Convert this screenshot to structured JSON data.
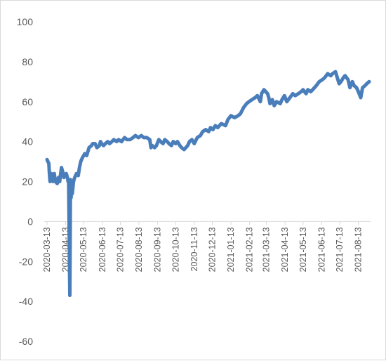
{
  "chart_data": {
    "type": "line",
    "title": "",
    "xlabel": "",
    "ylabel": "",
    "ylim": [
      -60,
      100
    ],
    "y_ticks": [
      100,
      80,
      60,
      40,
      20,
      0,
      -20,
      -40,
      -60
    ],
    "x_ticks": [
      "2020-03-13",
      "2020-04-13",
      "2020-05-13",
      "2020-06-13",
      "2020-07-13",
      "2020-08-13",
      "2020-09-13",
      "2020-10-13",
      "2020-11-13",
      "2020-12-13",
      "2021-01-13",
      "2021-02-13",
      "2021-03-13",
      "2021-04-13",
      "2021-05-13",
      "2021-06-13",
      "2021-07-13",
      "2021-08-13"
    ],
    "x_range": [
      "2020-03-13",
      "2021-08-31"
    ],
    "grid": false,
    "legend": "none",
    "line_color": "#4a7ebb",
    "series": [
      {
        "x": [
          "2020-03-13",
          "2020-03-16",
          "2020-03-17",
          "2020-03-18",
          "2020-03-20",
          "2020-03-23",
          "2020-03-25",
          "2020-03-27",
          "2020-03-30",
          "2020-04-01",
          "2020-04-03",
          "2020-04-06",
          "2020-04-08",
          "2020-04-10",
          "2020-04-14",
          "2020-04-16",
          "2020-04-17",
          "2020-04-18",
          "2020-04-19",
          "2020-04-20",
          "2020-04-21",
          "2020-04-22",
          "2020-04-23",
          "2020-04-24",
          "2020-04-26",
          "2020-04-28",
          "2020-05-01",
          "2020-05-04",
          "2020-05-06",
          "2020-05-08",
          "2020-05-11",
          "2020-05-13",
          "2020-05-15",
          "2020-05-18",
          "2020-05-20",
          "2020-05-22",
          "2020-05-26",
          "2020-05-28",
          "2020-06-01",
          "2020-06-04",
          "2020-06-08",
          "2020-06-10",
          "2020-06-12",
          "2020-06-15",
          "2020-06-18",
          "2020-06-22",
          "2020-06-25",
          "2020-06-29",
          "2020-07-02",
          "2020-07-07",
          "2020-07-10",
          "2020-07-15",
          "2020-07-20",
          "2020-07-24",
          "2020-07-29",
          "2020-08-03",
          "2020-08-07",
          "2020-08-12",
          "2020-08-17",
          "2020-08-21",
          "2020-08-26",
          "2020-08-31",
          "2020-09-02",
          "2020-09-04",
          "2020-09-08",
          "2020-09-11",
          "2020-09-15",
          "2020-09-18",
          "2020-09-22",
          "2020-09-25",
          "2020-09-29",
          "2020-10-02",
          "2020-10-06",
          "2020-10-09",
          "2020-10-13",
          "2020-10-16",
          "2020-10-20",
          "2020-10-23",
          "2020-10-27",
          "2020-10-30",
          "2020-11-02",
          "2020-11-05",
          "2020-11-09",
          "2020-11-13",
          "2020-11-18",
          "2020-11-23",
          "2020-11-27",
          "2020-12-02",
          "2020-12-07",
          "2020-12-10",
          "2020-12-14",
          "2020-12-18",
          "2020-12-22",
          "2020-12-28",
          "2021-01-04",
          "2021-01-08",
          "2021-01-13",
          "2021-01-19",
          "2021-01-25",
          "2021-01-29",
          "2021-02-03",
          "2021-02-08",
          "2021-02-12",
          "2021-02-17",
          "2021-02-22",
          "2021-02-26",
          "2021-03-03",
          "2021-03-05",
          "2021-03-09",
          "2021-03-12",
          "2021-03-15",
          "2021-03-17",
          "2021-03-19",
          "2021-03-23",
          "2021-03-26",
          "2021-03-30",
          "2021-04-05",
          "2021-04-08",
          "2021-04-12",
          "2021-04-16",
          "2021-04-21",
          "2021-04-26",
          "2021-04-30",
          "2021-05-05",
          "2021-05-10",
          "2021-05-13",
          "2021-05-18",
          "2021-05-21",
          "2021-05-26",
          "2021-06-01",
          "2021-06-04",
          "2021-06-09",
          "2021-06-14",
          "2021-06-18",
          "2021-06-23",
          "2021-06-28",
          "2021-07-01",
          "2021-07-06",
          "2021-07-09",
          "2021-07-12",
          "2021-07-15",
          "2021-07-19",
          "2021-07-22",
          "2021-07-27",
          "2021-07-30",
          "2021-08-03",
          "2021-08-06",
          "2021-08-10",
          "2021-08-13",
          "2021-08-17",
          "2021-08-20",
          "2021-08-24",
          "2021-08-27",
          "2021-08-31"
        ],
        "y": [
          31,
          29,
          24,
          20,
          24,
          20,
          24,
          20,
          19,
          22,
          20,
          27,
          25,
          22,
          24,
          22,
          20,
          21,
          -10,
          -37,
          21,
          12,
          19,
          14,
          20,
          22,
          24,
          23,
          27,
          30,
          32,
          33,
          34,
          33,
          35,
          37,
          38,
          39,
          39,
          37,
          38,
          40,
          39,
          38,
          39,
          40,
          39,
          40,
          41,
          40,
          41,
          40,
          42,
          41,
          41,
          42,
          43,
          42,
          43,
          42,
          42,
          41,
          37,
          38,
          37,
          38,
          41,
          40,
          39,
          41,
          40,
          39,
          38,
          40,
          39,
          40,
          38,
          37,
          36,
          37,
          38,
          40,
          41,
          39,
          42,
          43,
          45,
          46,
          45,
          47,
          46,
          48,
          47,
          49,
          48,
          51,
          53,
          52,
          53,
          54,
          57,
          59,
          60,
          61,
          62,
          63,
          60,
          64,
          66,
          65,
          64,
          62,
          59,
          61,
          58,
          60,
          59,
          61,
          63,
          60,
          62,
          64,
          63,
          64,
          65,
          66,
          64,
          66,
          65,
          67,
          68,
          70,
          71,
          72,
          74,
          73,
          74,
          75,
          72,
          69,
          70,
          72,
          73,
          71,
          67,
          70,
          68,
          67,
          65,
          62,
          67,
          68,
          69,
          70
        ]
      }
    ]
  }
}
